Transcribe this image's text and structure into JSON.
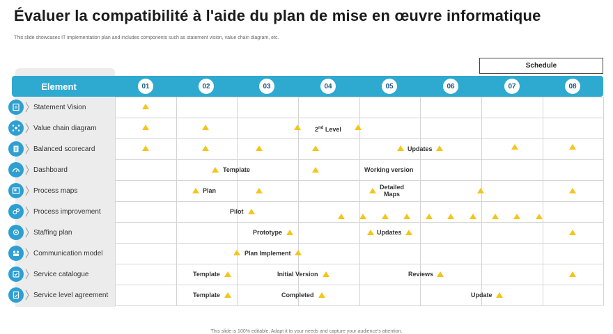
{
  "title": "Évaluer la compatibilité à l'aide du plan de mise en œuvre informatique",
  "subtitle": "This slide showcases IT implementation plan and includes components such as statement vision, value chain diagram, etc.",
  "schedule_label": "Schedule",
  "element_header": "Element",
  "columns": [
    "01",
    "02",
    "03",
    "04",
    "05",
    "06",
    "07",
    "08"
  ],
  "rows": [
    {
      "label": "Statement Vision",
      "icon": "vision-icon"
    },
    {
      "label": "Value chain diagram",
      "icon": "chain-icon"
    },
    {
      "label": "Balanced scorecard",
      "icon": "scorecard-icon"
    },
    {
      "label": "Dashboard",
      "icon": "dashboard-icon"
    },
    {
      "label": "Process maps",
      "icon": "map-icon"
    },
    {
      "label": "Process improvement",
      "icon": "improvement-icon"
    },
    {
      "label": "Staffing plan",
      "icon": "staffing-icon"
    },
    {
      "label": "Communication model",
      "icon": "communication-icon"
    },
    {
      "label": "Service catalogue",
      "icon": "catalogue-icon"
    },
    {
      "label": "Service level agreement",
      "icon": "agreement-icon"
    }
  ],
  "cells": {
    "vc_level": "Level",
    "vc_level_sup": "nd",
    "vc_level_num": "2",
    "bs_updates": "Updates",
    "db_template": "Template",
    "db_working": "Working version",
    "pm_plan": "Plan",
    "pm_detailed_1": "Detailed",
    "pm_detailed_2": "Maps",
    "pi_pilot": "Pilot",
    "sp_prototype": "Prototype",
    "sp_updates": "Updates",
    "cm_plan": "Plan Implement",
    "sc_template": "Template",
    "sc_initial": "Initial Version",
    "sc_reviews": "Reviews",
    "sla_template": "Template",
    "sla_completed": "Completed",
    "sla_update": "Update"
  },
  "footer": "This slide is 100% editable. Adapt it to your needs and capture your audience's attention.",
  "colors": {
    "accent": "#2eaad1",
    "milestone": "#f5c518",
    "panel": "#ececec"
  }
}
